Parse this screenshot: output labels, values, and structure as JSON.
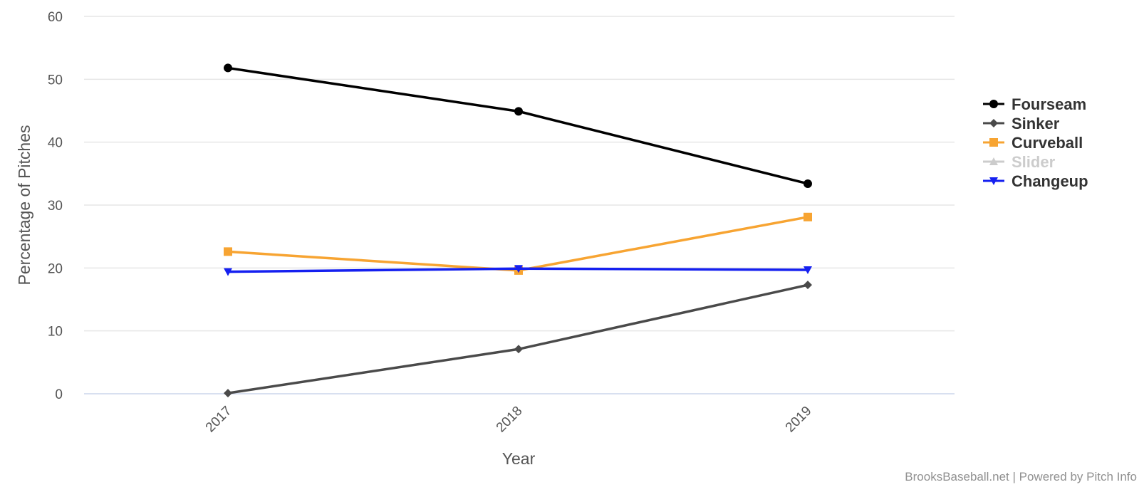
{
  "chart_data": {
    "type": "line",
    "title": "",
    "xlabel": "Year",
    "ylabel": "Percentage of Pitches",
    "categories": [
      "2017",
      "2018",
      "2019"
    ],
    "ylim": [
      0,
      60
    ],
    "yticks": [
      0,
      10,
      20,
      30,
      40,
      50,
      60
    ],
    "grid": true,
    "legend_position": "right",
    "series": [
      {
        "name": "Fourseam",
        "color": "#000000",
        "marker": "circle",
        "values": [
          51.8,
          44.9,
          33.4
        ],
        "visible": true
      },
      {
        "name": "Sinker",
        "color": "#4a4a4a",
        "marker": "diamond",
        "values": [
          0.1,
          7.1,
          17.3
        ],
        "visible": true
      },
      {
        "name": "Curveball",
        "color": "#f7a432",
        "marker": "square",
        "values": [
          22.6,
          19.6,
          28.1
        ],
        "visible": true
      },
      {
        "name": "Slider",
        "color": "#cccccc",
        "marker": "triangle",
        "values": [
          null,
          null,
          null
        ],
        "visible": false
      },
      {
        "name": "Changeup",
        "color": "#1520f0",
        "marker": "triangle-down",
        "values": [
          19.4,
          19.9,
          19.7
        ],
        "visible": true
      }
    ],
    "credits": "BrooksBaseball.net | Powered by Pitch Info"
  }
}
